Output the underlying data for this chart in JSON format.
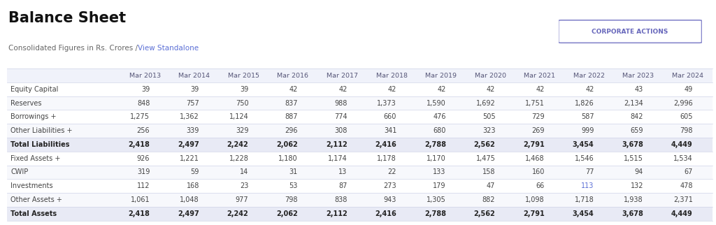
{
  "title": "Balance Sheet",
  "subtitle": "Consolidated Figures in Rs. Crores / View Standalone",
  "subtitle_parts": [
    {
      "text": "Consolidated Figures in Rs. Crores / ",
      "color": "#555555"
    },
    {
      "text": "View Standalone",
      "color": "#5b6fd6"
    }
  ],
  "button_text": "CORPORATE ACTIONS",
  "columns": [
    "",
    "Mar 2013",
    "Mar 2014",
    "Mar 2015",
    "Mar 2016",
    "Mar 2017",
    "Mar 2018",
    "Mar 2019",
    "Mar 2020",
    "Mar 2021",
    "Mar 2022",
    "Mar 2023",
    "Mar 2024"
  ],
  "rows": [
    {
      "label": "Equity Capital",
      "label_color": "#444444",
      "bold": false,
      "values": [
        "39",
        "39",
        "39",
        "42",
        "42",
        "42",
        "42",
        "42",
        "42",
        "42",
        "43",
        "49"
      ],
      "value_color": "#444444"
    },
    {
      "label": "Reserves",
      "label_color": "#444444",
      "bold": false,
      "values": [
        "848",
        "757",
        "750",
        "837",
        "988",
        "1,373",
        "1,590",
        "1,692",
        "1,751",
        "1,826",
        "2,134",
        "2,996"
      ],
      "value_color": "#444444"
    },
    {
      "label": "Borrowings +",
      "label_color": "#444444",
      "bold": false,
      "values": [
        "1,275",
        "1,362",
        "1,124",
        "887",
        "774",
        "660",
        "476",
        "505",
        "729",
        "587",
        "842",
        "605"
      ],
      "value_color": "#444444"
    },
    {
      "label": "Other Liabilities +",
      "label_color": "#444444",
      "bold": false,
      "values": [
        "256",
        "339",
        "329",
        "296",
        "308",
        "341",
        "680",
        "323",
        "269",
        "999",
        "659",
        "798"
      ],
      "value_color": "#444444"
    },
    {
      "label": "Total Liabilities",
      "label_color": "#222222",
      "bold": true,
      "values": [
        "2,418",
        "2,497",
        "2,242",
        "2,062",
        "2,112",
        "2,416",
        "2,788",
        "2,562",
        "2,791",
        "3,454",
        "3,678",
        "4,449"
      ],
      "value_color": "#222222"
    },
    {
      "label": "Fixed Assets +",
      "label_color": "#444444",
      "bold": false,
      "values": [
        "926",
        "1,221",
        "1,228",
        "1,180",
        "1,174",
        "1,178",
        "1,170",
        "1,475",
        "1,468",
        "1,546",
        "1,515",
        "1,534"
      ],
      "value_color": "#444444"
    },
    {
      "label": "CWIP",
      "label_color": "#444444",
      "bold": false,
      "values": [
        "319",
        "59",
        "14",
        "31",
        "13",
        "22",
        "133",
        "158",
        "160",
        "77",
        "94",
        "67"
      ],
      "value_color": "#444444"
    },
    {
      "label": "Investments",
      "label_color": "#444444",
      "bold": false,
      "values": [
        "112",
        "168",
        "23",
        "53",
        "87",
        "273",
        "179",
        "47",
        "66",
        "113",
        "132",
        "478"
      ],
      "value_color": "#444444",
      "special_col": 9,
      "special_color": "#5b6fd6"
    },
    {
      "label": "Other Assets +",
      "label_color": "#444444",
      "bold": false,
      "values": [
        "1,061",
        "1,048",
        "977",
        "798",
        "838",
        "943",
        "1,305",
        "882",
        "1,098",
        "1,718",
        "1,938",
        "2,371"
      ],
      "value_color": "#444444"
    },
    {
      "label": "Total Assets",
      "label_color": "#222222",
      "bold": true,
      "values": [
        "2,418",
        "2,497",
        "2,242",
        "2,062",
        "2,112",
        "2,416",
        "2,788",
        "2,562",
        "2,791",
        "3,454",
        "3,678",
        "4,449"
      ],
      "value_color": "#222222"
    }
  ],
  "bg_color": "#ffffff",
  "header_bg": "#f0f2fa",
  "total_row_bg": "#e8eaf5",
  "normal_row_bg": "#ffffff",
  "alt_row_bg": "#f7f8fc",
  "border_color": "#d0d4e8",
  "header_text_color": "#555577",
  "investments_special_col_idx": 9,
  "investments_special_color": "#5b6fd6"
}
